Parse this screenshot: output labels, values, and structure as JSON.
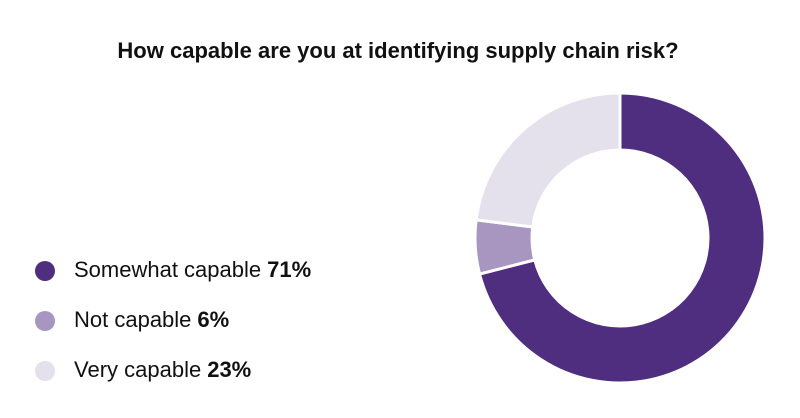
{
  "chart_data": {
    "type": "donut",
    "title": "How capable are you at identifying supply chain risk?",
    "categories": [
      "Somewhat capable",
      "Not capable",
      "Very capable"
    ],
    "values": [
      71,
      6,
      23
    ],
    "value_labels": [
      "71%",
      "6%",
      "23%"
    ],
    "colors": [
      "#4f2d7f",
      "#a996c0",
      "#e4e0ec"
    ]
  }
}
